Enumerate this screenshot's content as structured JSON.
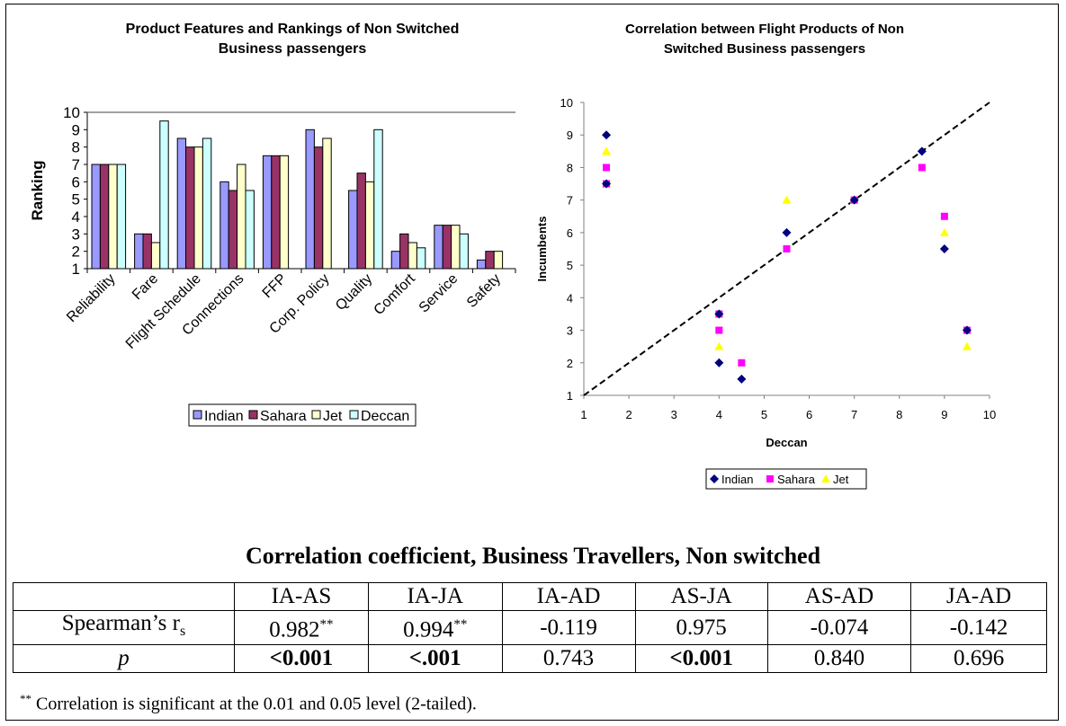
{
  "chart_data": [
    {
      "type": "bar",
      "title": "Product Features and Rankings of Non Switched Business passengers",
      "title_lines": [
        "Product Features and Rankings of Non Switched",
        "Business passengers"
      ],
      "xlabel": "",
      "ylabel": "Ranking",
      "ylim": [
        1,
        10
      ],
      "yticks": [
        "1",
        "2",
        "3",
        "4",
        "5",
        "6",
        "7",
        "8",
        "9",
        "10"
      ],
      "categories": [
        "Reliability",
        "Fare",
        "Flight Schedule",
        "Connections",
        "FFP",
        "Corp. Policy",
        "Quality",
        "Comfort",
        "Service",
        "Safety"
      ],
      "series": [
        {
          "name": "Indian",
          "color": "#9999ff",
          "values": [
            7,
            3,
            8.5,
            6,
            7.5,
            9,
            5.5,
            2,
            3.5,
            1.5
          ]
        },
        {
          "name": "Sahara",
          "color": "#993366",
          "values": [
            7,
            3,
            8,
            5.5,
            7.5,
            8,
            6.5,
            3,
            3.5,
            2
          ]
        },
        {
          "name": "Jet",
          "color": "#ffffcc",
          "values": [
            7,
            2.5,
            8,
            7,
            7.5,
            8.5,
            6,
            2.5,
            3.5,
            2
          ]
        },
        {
          "name": "Deccan",
          "color": "#ccffff",
          "values": [
            7,
            9.5,
            8.5,
            5.5,
            null,
            null,
            9,
            2.2,
            3,
            null
          ]
        }
      ],
      "legend_position": "bottom",
      "grid": false
    },
    {
      "type": "scatter",
      "title": "Correlation between Flight Products of Non Switched Business passengers",
      "title_lines": [
        "Correlation between Flight Products of Non",
        "Switched Business passengers"
      ],
      "xlabel": "Deccan",
      "ylabel": "Incumbents",
      "xlim": [
        1,
        10
      ],
      "ylim": [
        1,
        10
      ],
      "xticks": [
        "1",
        "2",
        "3",
        "4",
        "5",
        "6",
        "7",
        "8",
        "9",
        "10"
      ],
      "yticks": [
        "1",
        "2",
        "3",
        "4",
        "5",
        "6",
        "7",
        "8",
        "9",
        "10"
      ],
      "diagonal": "y = x (dashed)",
      "series": [
        {
          "name": "Indian",
          "marker": "diamond",
          "color": "#000080",
          "points": [
            [
              1.5,
              9
            ],
            [
              9.5,
              3
            ],
            [
              8.5,
              8.5
            ],
            [
              4,
              2
            ],
            [
              7,
              7
            ],
            [
              5.5,
              6
            ],
            [
              9,
              5.5
            ],
            [
              4.5,
              1.5
            ],
            [
              4,
              3.5
            ],
            [
              1.5,
              7.5
            ]
          ]
        },
        {
          "name": "Sahara",
          "marker": "square",
          "color": "#ff00ff",
          "points": [
            [
              1.5,
              8
            ],
            [
              9.5,
              3
            ],
            [
              8.5,
              8
            ],
            [
              4,
              3
            ],
            [
              7,
              7
            ],
            [
              5.5,
              5.5
            ],
            [
              9,
              6.5
            ],
            [
              4.5,
              2
            ],
            [
              4,
              3.5
            ],
            [
              1.5,
              7.5
            ]
          ]
        },
        {
          "name": "Jet",
          "marker": "triangle",
          "color": "#ffff00",
          "points": [
            [
              1.5,
              8.5
            ],
            [
              9.5,
              2.5
            ],
            [
              8.5,
              8
            ],
            [
              4,
              2.5
            ],
            [
              7,
              7
            ],
            [
              5.5,
              7
            ],
            [
              9,
              6
            ],
            [
              4.5,
              2
            ],
            [
              4,
              3.5
            ],
            [
              1.5,
              7.5
            ]
          ]
        }
      ],
      "legend_position": "bottom",
      "grid": false
    }
  ],
  "table": {
    "title": "Correlation coefficient, Business Travellers, Non switched",
    "headers": [
      "",
      "IA-AS",
      "IA-JA",
      "IA-AD",
      "AS-JA",
      "AS-AD",
      "JA-AD"
    ],
    "row1_label": "Spearman’s r",
    "row1_label_sub": "s",
    "row1": [
      "0.982",
      "0.994",
      "-0.119",
      "0.975",
      "-0.074",
      "-0.142"
    ],
    "row1_sup": [
      "**",
      "**",
      "",
      "",
      "",
      ""
    ],
    "row2_label": "p",
    "row2": [
      "<0.001",
      "<.001",
      "0.743",
      "<0.001",
      "0.840",
      "0.696"
    ],
    "row2_bold": [
      true,
      true,
      false,
      true,
      false,
      false
    ],
    "footnote_mark": "**",
    "footnote": " Correlation is significant at the 0.01 and 0.05 level (2-tailed)."
  }
}
